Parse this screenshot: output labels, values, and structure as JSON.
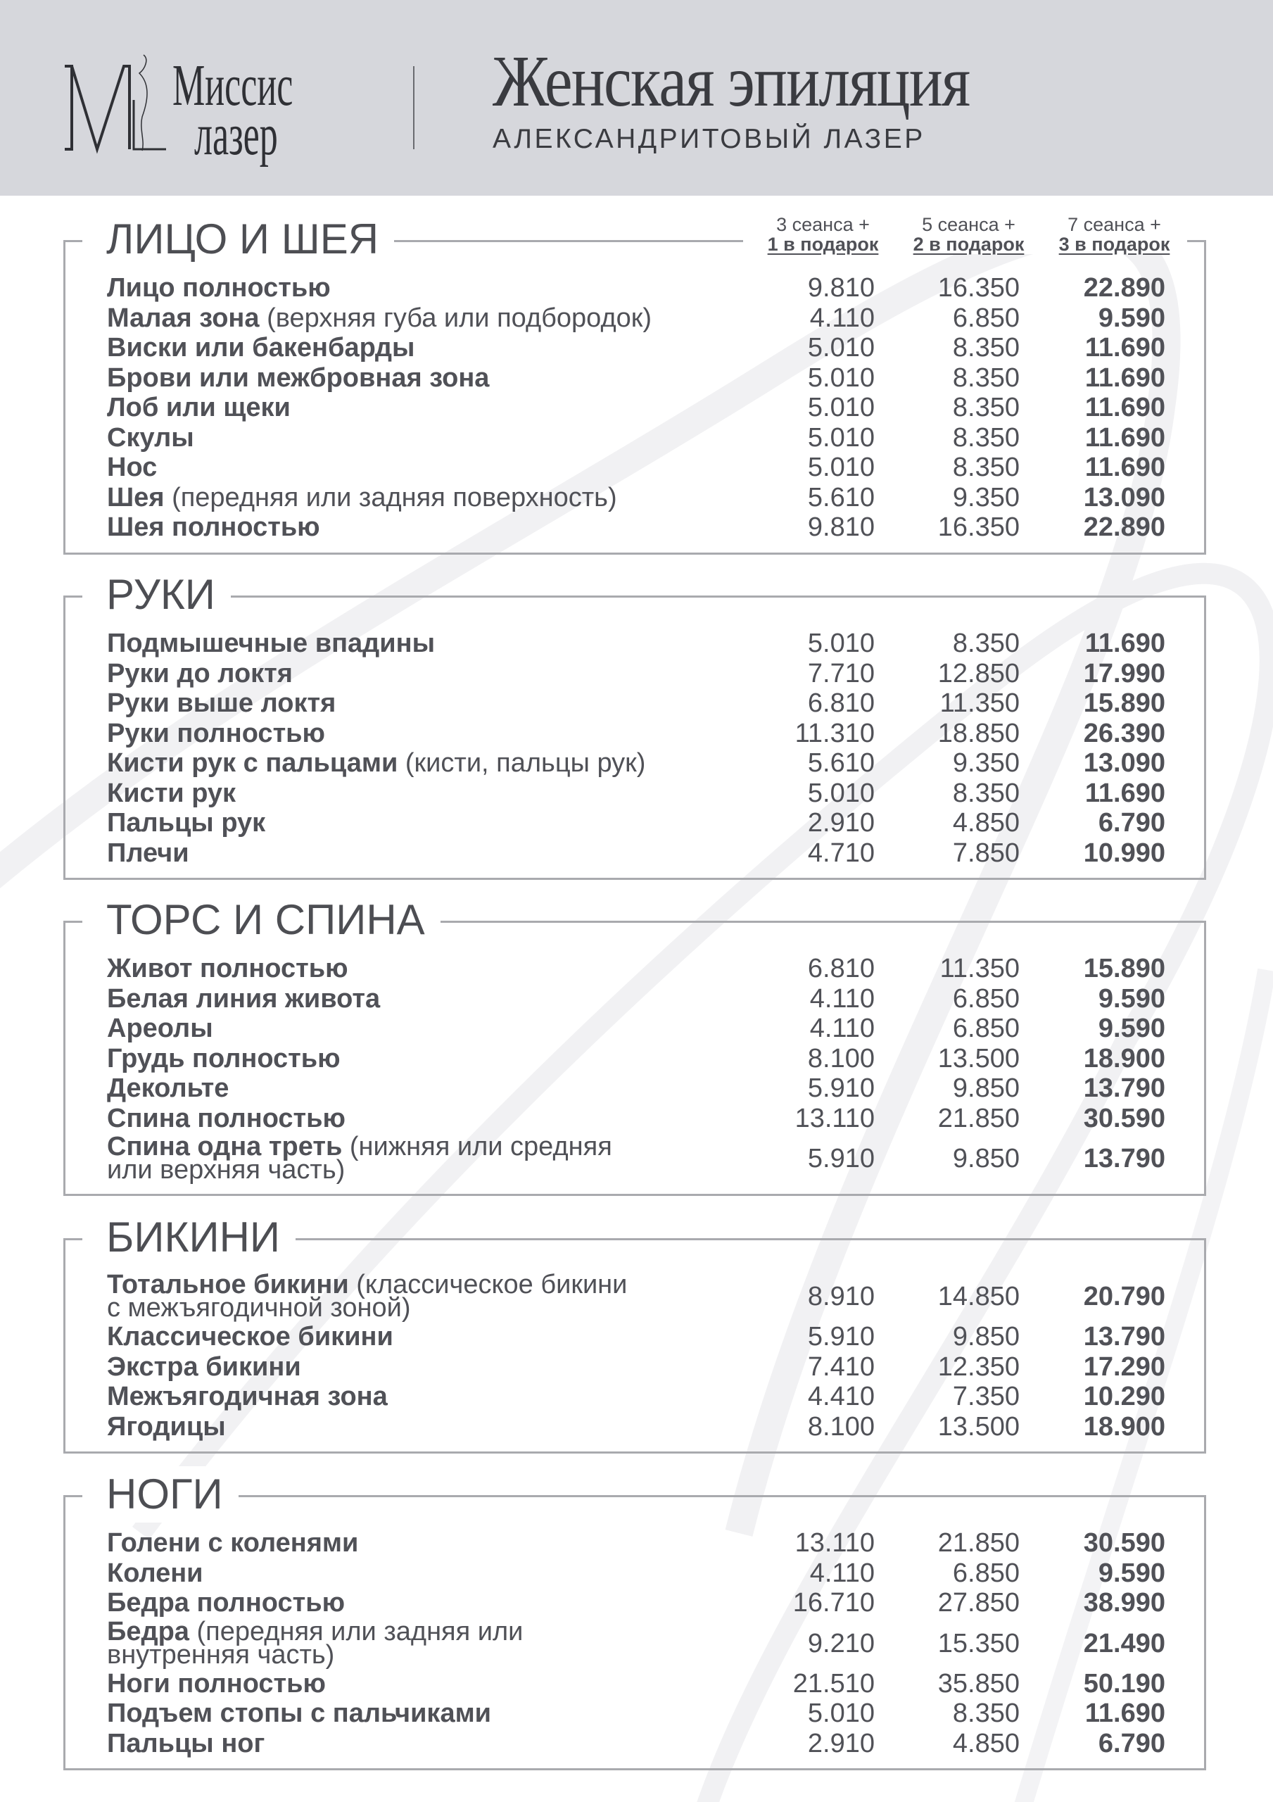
{
  "brand": {
    "logo_line1": "Миссис",
    "logo_line2": "лазер",
    "logo_mark": "ML"
  },
  "header": {
    "title": "Женская эпиляция",
    "subtitle": "АЛЕКСАНДРИТОВЫЙ ЛАЗЕР"
  },
  "columns": [
    {
      "line1": "3 сеанса +",
      "line2": "1 в подарок"
    },
    {
      "line1": "5 сеанса +",
      "line2": "2 в подарок"
    },
    {
      "line1": "7 сеанса +",
      "line2": "3 в подарок"
    }
  ],
  "colors": {
    "header_bg": "#d6d7dc",
    "text": "#505157",
    "border": "#a9aaae"
  },
  "sections": [
    {
      "title": "ЛИЦО И ШЕЯ",
      "rows": [
        {
          "name": "Лицо полностью",
          "note": "",
          "p3": "9.810",
          "p5": "16.350",
          "p7": "22.890"
        },
        {
          "name": "Малая зона",
          "note": "(верхняя губа или подбородок)",
          "p3": "4.110",
          "p5": "6.850",
          "p7": "9.590"
        },
        {
          "name": "Виски или бакенбарды",
          "note": "",
          "p3": "5.010",
          "p5": "8.350",
          "p7": "11.690"
        },
        {
          "name": "Брови или межбровная зона",
          "note": "",
          "p3": "5.010",
          "p5": "8.350",
          "p7": "11.690"
        },
        {
          "name": "Лоб или щеки",
          "note": "",
          "p3": "5.010",
          "p5": "8.350",
          "p7": "11.690"
        },
        {
          "name": "Скулы",
          "note": "",
          "p3": "5.010",
          "p5": "8.350",
          "p7": "11.690"
        },
        {
          "name": "Нос",
          "note": "",
          "p3": "5.010",
          "p5": "8.350",
          "p7": "11.690"
        },
        {
          "name": "Шея",
          "note": "(передняя или задняя поверхность)",
          "p3": "5.610",
          "p5": "9.350",
          "p7": "13.090"
        },
        {
          "name": "Шея полностью",
          "note": "",
          "p3": "9.810",
          "p5": "16.350",
          "p7": "22.890"
        }
      ]
    },
    {
      "title": "РУКИ",
      "rows": [
        {
          "name": "Подмышечные впадины",
          "note": "",
          "p3": "5.010",
          "p5": "8.350",
          "p7": "11.690"
        },
        {
          "name": "Руки до локтя",
          "note": "",
          "p3": "7.710",
          "p5": "12.850",
          "p7": "17.990"
        },
        {
          "name": "Руки выше локтя",
          "note": "",
          "p3": "6.810",
          "p5": "11.350",
          "p7": "15.890"
        },
        {
          "name": "Руки полностью",
          "note": "",
          "p3": "11.310",
          "p5": "18.850",
          "p7": "26.390"
        },
        {
          "name": "Кисти рук с пальцами",
          "note": "(кисти, пальцы рук)",
          "p3": "5.610",
          "p5": "9.350",
          "p7": "13.090"
        },
        {
          "name": "Кисти рук",
          "note": "",
          "p3": "5.010",
          "p5": "8.350",
          "p7": "11.690"
        },
        {
          "name": "Пальцы рук",
          "note": "",
          "p3": "2.910",
          "p5": "4.850",
          "p7": "6.790"
        },
        {
          "name": "Плечи",
          "note": "",
          "p3": "4.710",
          "p5": "7.850",
          "p7": "10.990"
        }
      ]
    },
    {
      "title": "ТОРС И СПИНА",
      "rows": [
        {
          "name": "Живот полностью",
          "note": "",
          "p3": "6.810",
          "p5": "11.350",
          "p7": "15.890"
        },
        {
          "name": "Белая линия живота",
          "note": "",
          "p3": "4.110",
          "p5": "6.850",
          "p7": "9.590"
        },
        {
          "name": "Ареолы",
          "note": "",
          "p3": "4.110",
          "p5": "6.850",
          "p7": "9.590"
        },
        {
          "name": "Грудь полностью",
          "note": "",
          "p3": "8.100",
          "p5": "13.500",
          "p7": "18.900"
        },
        {
          "name": "Декольте",
          "note": "",
          "p3": "5.910",
          "p5": "9.850",
          "p7": "13.790"
        },
        {
          "name": "Спина полностью",
          "note": "",
          "p3": "13.110",
          "p5": "21.850",
          "p7": "30.590"
        },
        {
          "name": "Спина одна треть",
          "note": "(нижняя или средняя\nили верхняя часть)",
          "p3": "5.910",
          "p5": "9.850",
          "p7": "13.790"
        }
      ]
    },
    {
      "title": "БИКИНИ",
      "rows": [
        {
          "name": "Тотальное бикини",
          "note": "(классическое бикини\nс межъягодичной зоной)",
          "p3": "8.910",
          "p5": "14.850",
          "p7": "20.790"
        },
        {
          "name": "Классическое бикини",
          "note": "",
          "p3": "5.910",
          "p5": "9.850",
          "p7": "13.790"
        },
        {
          "name": "Экстра бикини",
          "note": "",
          "p3": "7.410",
          "p5": "12.350",
          "p7": "17.290"
        },
        {
          "name": "Межъягодичная зона",
          "note": "",
          "p3": "4.410",
          "p5": "7.350",
          "p7": "10.290"
        },
        {
          "name": "Ягодицы",
          "note": "",
          "p3": "8.100",
          "p5": "13.500",
          "p7": "18.900"
        }
      ]
    },
    {
      "title": "НОГИ",
      "rows": [
        {
          "name": "Голени с коленями",
          "note": "",
          "p3": "13.110",
          "p5": "21.850",
          "p7": "30.590"
        },
        {
          "name": "Колени",
          "note": "",
          "p3": "4.110",
          "p5": "6.850",
          "p7": "9.590"
        },
        {
          "name": "Бедра полностью",
          "note": "",
          "p3": "16.710",
          "p5": "27.850",
          "p7": "38.990"
        },
        {
          "name": "Бедра",
          "note": "(передняя или задняя или\nвнутренняя часть)",
          "p3": "9.210",
          "p5": "15.350",
          "p7": "21.490"
        },
        {
          "name": "Ноги полностью",
          "note": "",
          "p3": "21.510",
          "p5": "35.850",
          "p7": "50.190"
        },
        {
          "name": "Подъем стопы с пальчиками",
          "note": "",
          "p3": "5.010",
          "p5": "8.350",
          "p7": "11.690"
        },
        {
          "name": "Пальцы ног",
          "note": "",
          "p3": "2.910",
          "p5": "4.850",
          "p7": "6.790"
        }
      ]
    }
  ]
}
